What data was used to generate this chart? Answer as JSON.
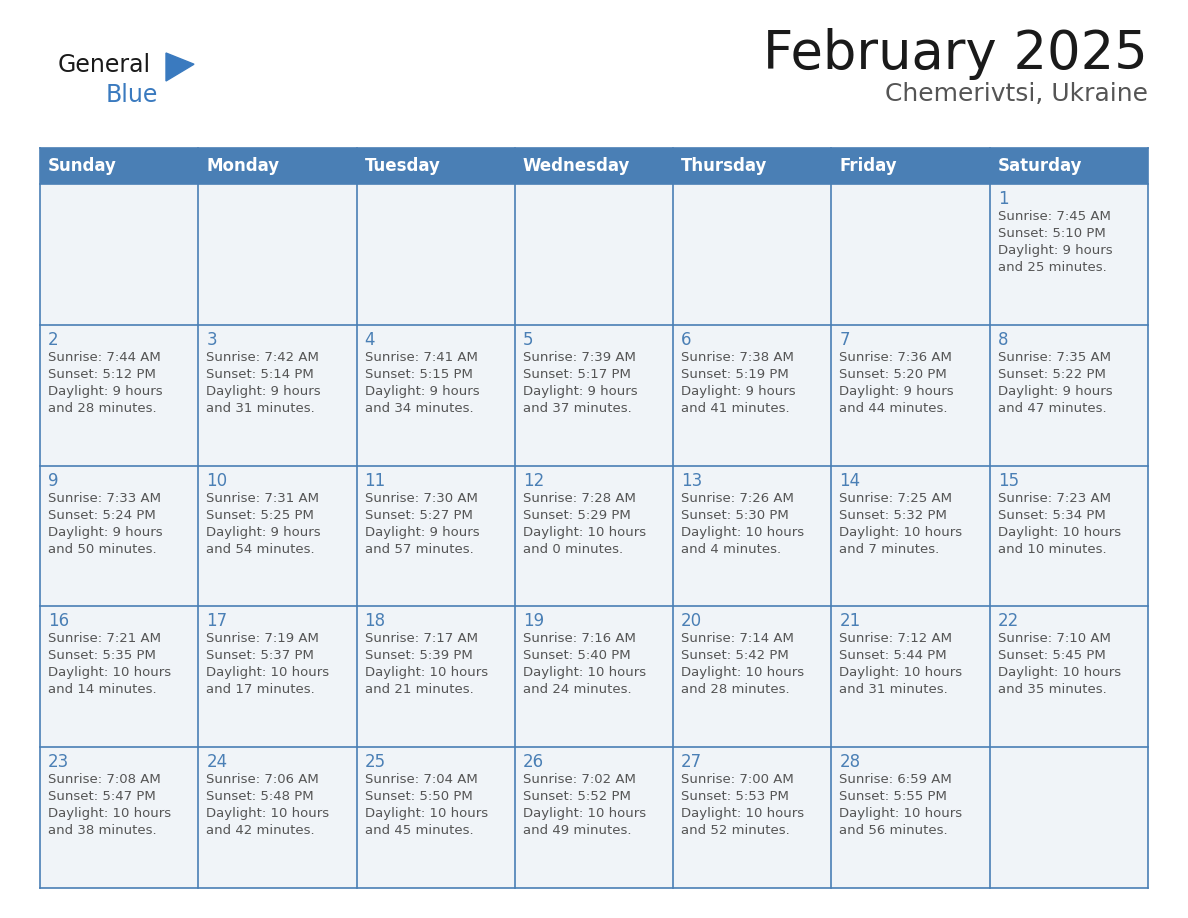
{
  "title": "February 2025",
  "subtitle": "Chemerivtsi, Ukraine",
  "header_bg": "#4a7fb5",
  "header_text": "#ffffff",
  "border_color": "#4a7fb5",
  "day_num_color": "#4a7fb5",
  "info_text_color": "#555555",
  "cell_bg": "#f0f4f8",
  "title_color": "#1a1a1a",
  "subtitle_color": "#555555",
  "weekdays": [
    "Sunday",
    "Monday",
    "Tuesday",
    "Wednesday",
    "Thursday",
    "Friday",
    "Saturday"
  ],
  "logo_general_color": "#1a1a1a",
  "logo_blue_color": "#3a7abf",
  "logo_triangle_color": "#3a7abf",
  "days": [
    {
      "day": 1,
      "col": 6,
      "row": 0,
      "sunrise": "7:45 AM",
      "sunset": "5:10 PM",
      "daylight_h": "9 hours",
      "daylight_m": "and 25 minutes."
    },
    {
      "day": 2,
      "col": 0,
      "row": 1,
      "sunrise": "7:44 AM",
      "sunset": "5:12 PM",
      "daylight_h": "9 hours",
      "daylight_m": "and 28 minutes."
    },
    {
      "day": 3,
      "col": 1,
      "row": 1,
      "sunrise": "7:42 AM",
      "sunset": "5:14 PM",
      "daylight_h": "9 hours",
      "daylight_m": "and 31 minutes."
    },
    {
      "day": 4,
      "col": 2,
      "row": 1,
      "sunrise": "7:41 AM",
      "sunset": "5:15 PM",
      "daylight_h": "9 hours",
      "daylight_m": "and 34 minutes."
    },
    {
      "day": 5,
      "col": 3,
      "row": 1,
      "sunrise": "7:39 AM",
      "sunset": "5:17 PM",
      "daylight_h": "9 hours",
      "daylight_m": "and 37 minutes."
    },
    {
      "day": 6,
      "col": 4,
      "row": 1,
      "sunrise": "7:38 AM",
      "sunset": "5:19 PM",
      "daylight_h": "9 hours",
      "daylight_m": "and 41 minutes."
    },
    {
      "day": 7,
      "col": 5,
      "row": 1,
      "sunrise": "7:36 AM",
      "sunset": "5:20 PM",
      "daylight_h": "9 hours",
      "daylight_m": "and 44 minutes."
    },
    {
      "day": 8,
      "col": 6,
      "row": 1,
      "sunrise": "7:35 AM",
      "sunset": "5:22 PM",
      "daylight_h": "9 hours",
      "daylight_m": "and 47 minutes."
    },
    {
      "day": 9,
      "col": 0,
      "row": 2,
      "sunrise": "7:33 AM",
      "sunset": "5:24 PM",
      "daylight_h": "9 hours",
      "daylight_m": "and 50 minutes."
    },
    {
      "day": 10,
      "col": 1,
      "row": 2,
      "sunrise": "7:31 AM",
      "sunset": "5:25 PM",
      "daylight_h": "9 hours",
      "daylight_m": "and 54 minutes."
    },
    {
      "day": 11,
      "col": 2,
      "row": 2,
      "sunrise": "7:30 AM",
      "sunset": "5:27 PM",
      "daylight_h": "9 hours",
      "daylight_m": "and 57 minutes."
    },
    {
      "day": 12,
      "col": 3,
      "row": 2,
      "sunrise": "7:28 AM",
      "sunset": "5:29 PM",
      "daylight_h": "10 hours",
      "daylight_m": "and 0 minutes."
    },
    {
      "day": 13,
      "col": 4,
      "row": 2,
      "sunrise": "7:26 AM",
      "sunset": "5:30 PM",
      "daylight_h": "10 hours",
      "daylight_m": "and 4 minutes."
    },
    {
      "day": 14,
      "col": 5,
      "row": 2,
      "sunrise": "7:25 AM",
      "sunset": "5:32 PM",
      "daylight_h": "10 hours",
      "daylight_m": "and 7 minutes."
    },
    {
      "day": 15,
      "col": 6,
      "row": 2,
      "sunrise": "7:23 AM",
      "sunset": "5:34 PM",
      "daylight_h": "10 hours",
      "daylight_m": "and 10 minutes."
    },
    {
      "day": 16,
      "col": 0,
      "row": 3,
      "sunrise": "7:21 AM",
      "sunset": "5:35 PM",
      "daylight_h": "10 hours",
      "daylight_m": "and 14 minutes."
    },
    {
      "day": 17,
      "col": 1,
      "row": 3,
      "sunrise": "7:19 AM",
      "sunset": "5:37 PM",
      "daylight_h": "10 hours",
      "daylight_m": "and 17 minutes."
    },
    {
      "day": 18,
      "col": 2,
      "row": 3,
      "sunrise": "7:17 AM",
      "sunset": "5:39 PM",
      "daylight_h": "10 hours",
      "daylight_m": "and 21 minutes."
    },
    {
      "day": 19,
      "col": 3,
      "row": 3,
      "sunrise": "7:16 AM",
      "sunset": "5:40 PM",
      "daylight_h": "10 hours",
      "daylight_m": "and 24 minutes."
    },
    {
      "day": 20,
      "col": 4,
      "row": 3,
      "sunrise": "7:14 AM",
      "sunset": "5:42 PM",
      "daylight_h": "10 hours",
      "daylight_m": "and 28 minutes."
    },
    {
      "day": 21,
      "col": 5,
      "row": 3,
      "sunrise": "7:12 AM",
      "sunset": "5:44 PM",
      "daylight_h": "10 hours",
      "daylight_m": "and 31 minutes."
    },
    {
      "day": 22,
      "col": 6,
      "row": 3,
      "sunrise": "7:10 AM",
      "sunset": "5:45 PM",
      "daylight_h": "10 hours",
      "daylight_m": "and 35 minutes."
    },
    {
      "day": 23,
      "col": 0,
      "row": 4,
      "sunrise": "7:08 AM",
      "sunset": "5:47 PM",
      "daylight_h": "10 hours",
      "daylight_m": "and 38 minutes."
    },
    {
      "day": 24,
      "col": 1,
      "row": 4,
      "sunrise": "7:06 AM",
      "sunset": "5:48 PM",
      "daylight_h": "10 hours",
      "daylight_m": "and 42 minutes."
    },
    {
      "day": 25,
      "col": 2,
      "row": 4,
      "sunrise": "7:04 AM",
      "sunset": "5:50 PM",
      "daylight_h": "10 hours",
      "daylight_m": "and 45 minutes."
    },
    {
      "day": 26,
      "col": 3,
      "row": 4,
      "sunrise": "7:02 AM",
      "sunset": "5:52 PM",
      "daylight_h": "10 hours",
      "daylight_m": "and 49 minutes."
    },
    {
      "day": 27,
      "col": 4,
      "row": 4,
      "sunrise": "7:00 AM",
      "sunset": "5:53 PM",
      "daylight_h": "10 hours",
      "daylight_m": "and 52 minutes."
    },
    {
      "day": 28,
      "col": 5,
      "row": 4,
      "sunrise": "6:59 AM",
      "sunset": "5:55 PM",
      "daylight_h": "10 hours",
      "daylight_m": "and 56 minutes."
    }
  ],
  "num_rows": 5,
  "num_cols": 7
}
